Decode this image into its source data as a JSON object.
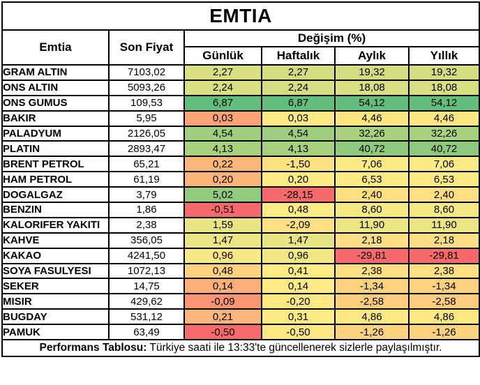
{
  "title": "EMTIA",
  "header": {
    "commodity": "Emtia",
    "last_price": "Son Fiyat",
    "change_group": "Değişim (%)",
    "periods": [
      "Günlük",
      "Haftalık",
      "Aylık",
      "Yıllık"
    ]
  },
  "rows": [
    {
      "name": "GRAM ALTIN",
      "price": "7103,02",
      "changes": [
        "2,27",
        "2,27",
        "19,32",
        "19,32"
      ],
      "colors": [
        "#D8E082",
        "#D3DE81",
        "#D3DE82",
        "#D3DE82"
      ]
    },
    {
      "name": "ONS ALTIN",
      "price": "5093,26",
      "changes": [
        "2,24",
        "2,24",
        "18,08",
        "18,08"
      ],
      "colors": [
        "#D8E082",
        "#D3DE82",
        "#D7DF82",
        "#D7DF82"
      ]
    },
    {
      "name": "ONS GUMUS",
      "price": "109,53",
      "changes": [
        "6,87",
        "6,87",
        "54,12",
        "54,12"
      ],
      "colors": [
        "#63BE7B",
        "#63BE7B",
        "#63BE7B",
        "#63BE7B"
      ]
    },
    {
      "name": "BAKIR",
      "price": "5,95",
      "changes": [
        "0,03",
        "0,03",
        "4,46",
        "4,46"
      ],
      "colors": [
        "#FBA276",
        "#FFE984",
        "#FFE683",
        "#FFE683"
      ]
    },
    {
      "name": "PALADYUM",
      "price": "2126,05",
      "changes": [
        "4,54",
        "4,54",
        "32,26",
        "32,26"
      ],
      "colors": [
        "#9ECF7E",
        "#9CCE7E",
        "#A9D27F",
        "#A9D27F"
      ]
    },
    {
      "name": "PLATIN",
      "price": "2893,47",
      "changes": [
        "4,13",
        "4,13",
        "40,72",
        "40,72"
      ],
      "colors": [
        "#A9D27F",
        "#A6D17F",
        "#8ECA7E",
        "#8ECA7E"
      ]
    },
    {
      "name": "BRENT PETROL",
      "price": "65,21",
      "changes": [
        "0,22",
        "-1,50",
        "7,06",
        "7,06"
      ],
      "colors": [
        "#FCB67A",
        "#FEE282",
        "#FBEA84",
        "#FBEA84"
      ]
    },
    {
      "name": "HAM PETROL",
      "price": "61,19",
      "changes": [
        "0,20",
        "0,20",
        "6,53",
        "6,53"
      ],
      "colors": [
        "#FCB479",
        "#FFEA84",
        "#FCEA84",
        "#FCEA84"
      ]
    },
    {
      "name": "DOGALGAZ",
      "price": "3,79",
      "changes": [
        "5,02",
        "-28,15",
        "2,40",
        "2,40"
      ],
      "colors": [
        "#92CB7E",
        "#F8696B",
        "#FEDF82",
        "#FEDF82"
      ]
    },
    {
      "name": "BENZIN",
      "price": "1,86",
      "changes": [
        "-0,51",
        "0,48",
        "8,60",
        "8,60"
      ],
      "colors": [
        "#F8696B",
        "#FEEB84",
        "#F6E883",
        "#F6E883"
      ]
    },
    {
      "name": "KALORIFER YAKITI",
      "price": "2,38",
      "changes": [
        "1,59",
        "-2,09",
        "11,90",
        "11,90"
      ],
      "colors": [
        "#E9E583",
        "#FEDF82",
        "#EBE583",
        "#EBE583"
      ]
    },
    {
      "name": "KAHVE",
      "price": "356,05",
      "changes": [
        "1,47",
        "1,47",
        "2,18",
        "2,18"
      ],
      "colors": [
        "#ECE583",
        "#E6E483",
        "#FEDE82",
        "#FEDE82"
      ]
    },
    {
      "name": "KAKAO",
      "price": "4241,50",
      "changes": [
        "0,96",
        "0,96",
        "-29,81",
        "-29,81"
      ],
      "colors": [
        "#F9E984",
        "#F2E783",
        "#F8696B",
        "#F8696B"
      ]
    },
    {
      "name": "SOYA FASULYESI",
      "price": "1072,13",
      "changes": [
        "0,48",
        "0,41",
        "2,38",
        "2,38"
      ],
      "colors": [
        "#FED27F",
        "#FFEB84",
        "#FEDF82",
        "#FEDF82"
      ]
    },
    {
      "name": "SEKER",
      "price": "14,75",
      "changes": [
        "0,14",
        "0,14",
        "-1,34",
        "-1,34"
      ],
      "colors": [
        "#FCAE78",
        "#FFEA84",
        "#FED17F",
        "#FED17F"
      ]
    },
    {
      "name": "MISIR",
      "price": "429,62",
      "changes": [
        "-0,09",
        "-0,20",
        "-2,58",
        "-2,58"
      ],
      "colors": [
        "#FA9574",
        "#FFE883",
        "#FDCD7E",
        "#FDCD7E"
      ]
    },
    {
      "name": "BUGDAY",
      "price": "531,12",
      "changes": [
        "0,21",
        "0,31",
        "4,86",
        "4,86"
      ],
      "colors": [
        "#FCB57A",
        "#FFEA84",
        "#FFE883",
        "#FFE883"
      ]
    },
    {
      "name": "PAMUK",
      "price": "63,49",
      "changes": [
        "-0,50",
        "-0,50",
        "-1,26",
        "-1,26"
      ],
      "colors": [
        "#F86A6B",
        "#FFE783",
        "#FED27F",
        "#FED27F"
      ]
    }
  ],
  "footer": {
    "label": "Performans Tablosu:",
    "text": " Türkiye saati ile 13:33'te güncellenerek sizlerle paylaşılmıştır."
  },
  "colors": {
    "scale_min_red": "#F8696B",
    "scale_mid_yellow": "#FFEB84",
    "scale_max_green": "#63BE7B",
    "border": "#000000",
    "background": "#FFFFFF"
  },
  "chart_data": {
    "type": "table",
    "title": "EMTIA",
    "columns": [
      "Emtia",
      "Son Fiyat",
      "Günlük",
      "Haftalık",
      "Aylık",
      "Yıllık"
    ],
    "change_unit": "%",
    "rows": [
      [
        "GRAM ALTIN",
        7103.02,
        2.27,
        2.27,
        19.32,
        19.32
      ],
      [
        "ONS ALTIN",
        5093.26,
        2.24,
        2.24,
        18.08,
        18.08
      ],
      [
        "ONS GUMUS",
        109.53,
        6.87,
        6.87,
        54.12,
        54.12
      ],
      [
        "BAKIR",
        5.95,
        0.03,
        0.03,
        4.46,
        4.46
      ],
      [
        "PALADYUM",
        2126.05,
        4.54,
        4.54,
        32.26,
        32.26
      ],
      [
        "PLATIN",
        2893.47,
        4.13,
        4.13,
        40.72,
        40.72
      ],
      [
        "BRENT PETROL",
        65.21,
        0.22,
        -1.5,
        7.06,
        7.06
      ],
      [
        "HAM PETROL",
        61.19,
        0.2,
        0.2,
        6.53,
        6.53
      ],
      [
        "DOGALGAZ",
        3.79,
        5.02,
        -28.15,
        2.4,
        2.4
      ],
      [
        "BENZIN",
        1.86,
        -0.51,
        0.48,
        8.6,
        8.6
      ],
      [
        "KALORIFER YAKITI",
        2.38,
        1.59,
        -2.09,
        11.9,
        11.9
      ],
      [
        "KAHVE",
        356.05,
        1.47,
        1.47,
        2.18,
        2.18
      ],
      [
        "KAKAO",
        4241.5,
        0.96,
        0.96,
        -29.81,
        -29.81
      ],
      [
        "SOYA FASULYESI",
        1072.13,
        0.48,
        0.41,
        2.38,
        2.38
      ],
      [
        "SEKER",
        14.75,
        0.14,
        0.14,
        -1.34,
        -1.34
      ],
      [
        "MISIR",
        429.62,
        -0.09,
        -0.2,
        -2.58,
        -2.58
      ],
      [
        "BUGDAY",
        531.12,
        0.21,
        0.31,
        4.86,
        4.86
      ],
      [
        "PAMUK",
        63.49,
        -0.5,
        -0.5,
        -1.26,
        -1.26
      ]
    ],
    "layout_hints": {
      "conditional_format": "3-color scale per column (red #F8696B → yellow #FFEB84 → green #63BE7B)",
      "grid": true
    }
  }
}
